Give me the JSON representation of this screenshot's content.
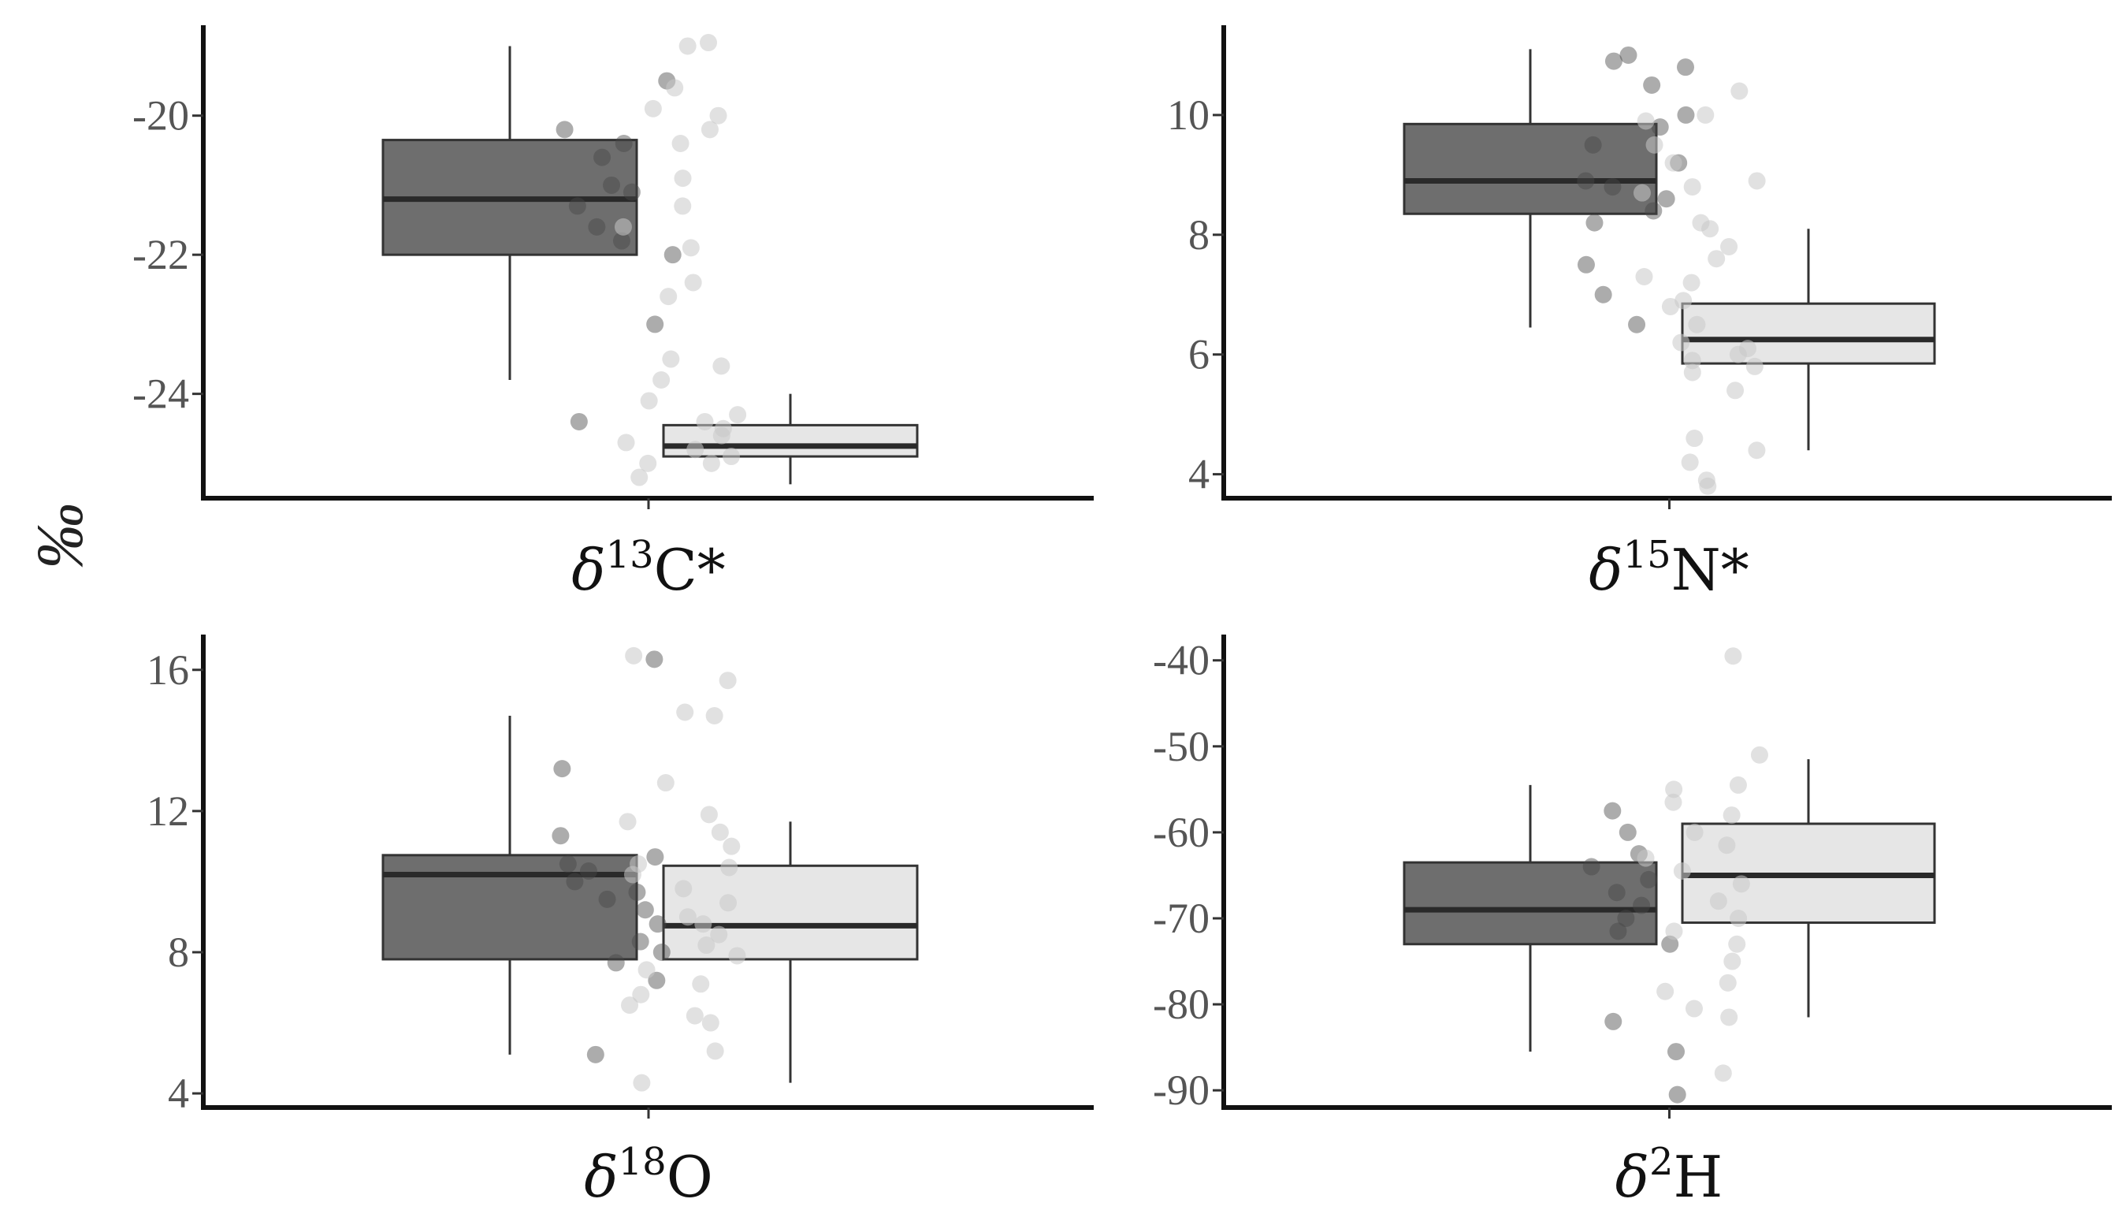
{
  "y_axis_title": "‰",
  "chart_data": [
    {
      "type": "boxplot",
      "title": "δ13C*",
      "title_parts": {
        "symbol": "δ",
        "sup": "13",
        "element": "C*"
      },
      "ylabel": "‰",
      "ylim": [
        -25.5,
        -18.7
      ],
      "yticks": [
        -24,
        -22,
        -20
      ],
      "tick_labels": [
        "-24",
        "-22",
        "-20"
      ],
      "groups": [
        {
          "color": "#6e6e6e",
          "whisker_low": -23.8,
          "q1": -22.0,
          "median": -21.2,
          "q3": -20.35,
          "whisker_high": -19.0,
          "points": [
            -19.5,
            -20.2,
            -20.4,
            -20.6,
            -21.0,
            -21.1,
            -21.3,
            -21.6,
            -21.8,
            -22.0,
            -23.0,
            -24.4
          ]
        },
        {
          "color": "#e6e6e6",
          "whisker_low": -25.3,
          "q1": -24.9,
          "median": -24.75,
          "q3": -24.45,
          "whisker_high": -24.0,
          "points": [
            -18.95,
            -19.0,
            -19.6,
            -19.9,
            -20.0,
            -20.2,
            -20.4,
            -20.9,
            -21.3,
            -21.6,
            -21.9,
            -22.4,
            -22.6,
            -23.6,
            -23.8,
            -23.5,
            -24.1,
            -24.3,
            -24.4,
            -24.5,
            -24.6,
            -24.7,
            -24.8,
            -24.9,
            -25.0,
            -25.0,
            -25.2
          ]
        }
      ]
    },
    {
      "type": "boxplot",
      "title": "δ15N*",
      "title_parts": {
        "symbol": "δ",
        "sup": "15",
        "element": "N*"
      },
      "ylabel": "‰",
      "ylim": [
        3.6,
        11.5
      ],
      "yticks": [
        4,
        6,
        8,
        10
      ],
      "tick_labels": [
        "4",
        "6",
        "8",
        "10"
      ],
      "groups": [
        {
          "color": "#6e6e6e",
          "whisker_low": 6.45,
          "q1": 8.35,
          "median": 8.9,
          "q3": 9.85,
          "whisker_high": 11.1,
          "points": [
            11.0,
            10.9,
            10.8,
            10.5,
            10.0,
            9.8,
            9.5,
            9.2,
            8.9,
            8.8,
            8.6,
            8.4,
            8.2,
            7.5,
            7.0,
            6.5
          ]
        },
        {
          "color": "#e6e6e6",
          "whisker_low": 4.4,
          "q1": 5.85,
          "median": 6.25,
          "q3": 6.85,
          "whisker_high": 8.1,
          "points": [
            10.4,
            10.0,
            9.9,
            9.5,
            9.2,
            8.9,
            8.8,
            8.7,
            8.2,
            8.1,
            7.8,
            7.6,
            7.3,
            7.2,
            6.9,
            6.8,
            6.5,
            6.2,
            6.1,
            6.0,
            5.9,
            5.8,
            5.7,
            5.4,
            4.6,
            4.4,
            4.2,
            3.9,
            3.8
          ]
        }
      ]
    },
    {
      "type": "boxplot",
      "title": "δ18O",
      "title_parts": {
        "symbol": "δ",
        "sup": "18",
        "element": "O"
      },
      "ylabel": "‰",
      "ylim": [
        3.6,
        17.0
      ],
      "yticks": [
        4,
        8,
        12,
        16
      ],
      "tick_labels": [
        "4",
        "8",
        "12",
        "16"
      ],
      "groups": [
        {
          "color": "#6e6e6e",
          "whisker_low": 5.1,
          "q1": 7.8,
          "median": 10.2,
          "q3": 10.75,
          "whisker_high": 14.7,
          "points": [
            16.3,
            13.2,
            11.3,
            10.7,
            10.5,
            10.3,
            10.0,
            9.7,
            9.5,
            9.2,
            8.8,
            8.3,
            8.0,
            7.7,
            7.2,
            5.1
          ]
        },
        {
          "color": "#e6e6e6",
          "whisker_low": 4.3,
          "q1": 7.8,
          "median": 8.75,
          "q3": 10.45,
          "whisker_high": 11.7,
          "points": [
            16.4,
            15.7,
            14.8,
            14.7,
            12.8,
            11.9,
            11.7,
            11.4,
            11.0,
            10.5,
            10.4,
            10.2,
            9.8,
            9.4,
            9.0,
            8.8,
            8.5,
            8.2,
            7.9,
            7.5,
            7.1,
            6.8,
            6.5,
            6.2,
            6.0,
            5.2,
            4.3
          ]
        }
      ]
    },
    {
      "type": "boxplot",
      "title": "δ2H",
      "title_parts": {
        "symbol": "δ",
        "sup": "2",
        "element": "H"
      },
      "ylabel": "‰",
      "ylim": [
        -92,
        -37
      ],
      "yticks": [
        -90,
        -80,
        -70,
        -60,
        -50,
        -40
      ],
      "tick_labels": [
        "-90",
        "-80",
        "-70",
        "-60",
        "-50",
        "-40"
      ],
      "groups": [
        {
          "color": "#6e6e6e",
          "whisker_low": -85.5,
          "q1": -73.0,
          "median": -69.0,
          "q3": -63.5,
          "whisker_high": -54.5,
          "points": [
            -57.5,
            -60.0,
            -62.5,
            -64.0,
            -65.5,
            -67.0,
            -68.5,
            -70.0,
            -71.5,
            -73.0,
            -82.0,
            -85.5,
            -90.5
          ]
        },
        {
          "color": "#e6e6e6",
          "whisker_low": -81.5,
          "q1": -70.5,
          "median": -65.0,
          "q3": -59.0,
          "whisker_high": -51.5,
          "points": [
            -39.5,
            -51.0,
            -54.5,
            -55.0,
            -56.5,
            -58.0,
            -60.0,
            -61.5,
            -63.0,
            -64.5,
            -66.0,
            -68.0,
            -70.0,
            -71.5,
            -73.0,
            -75.0,
            -77.5,
            -78.5,
            -80.5,
            -81.5,
            -88.0
          ]
        }
      ]
    }
  ]
}
